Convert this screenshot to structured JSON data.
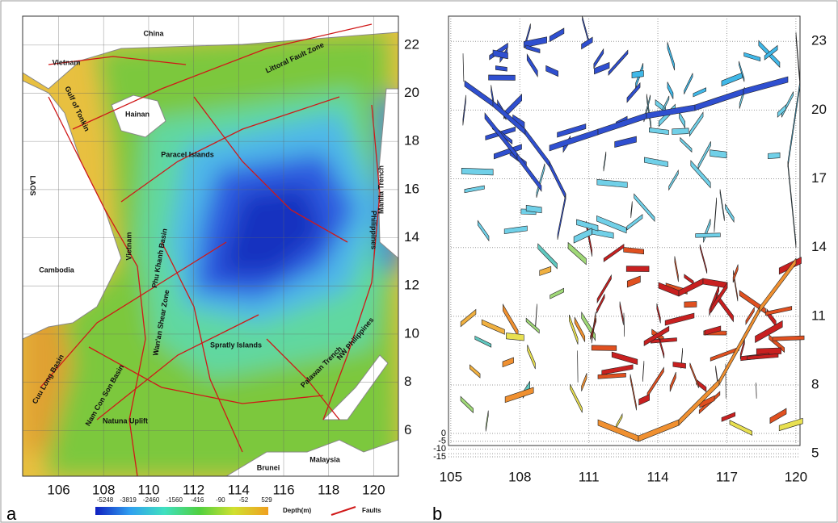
{
  "panel_a": {
    "label": "a",
    "xlim": [
      104.4,
      121.1
    ],
    "ylim": [
      4.1,
      23.2
    ],
    "xticks": [
      106,
      108,
      110,
      112,
      114,
      116,
      118,
      120
    ],
    "yticks": [
      6,
      8,
      10,
      12,
      14,
      16,
      18,
      20,
      22
    ],
    "places": [
      "China",
      "Vietnam",
      "Hainan",
      "Littoral Fault Zone",
      "Gulf of Tonkin",
      "LAOS",
      "Paracel Islands",
      "Manila Trench",
      "Philippines",
      "Cambodia",
      "Vietnam",
      "Phu Khanh Basin",
      "Wan'an Shear Zone",
      "Spratly Islands",
      "Palawan Trench",
      "NW Philippines",
      "Cuu Long Basin",
      "Nam Con Son Basin",
      "Natuna Uplift",
      "Brunei",
      "Malaysia"
    ],
    "colorbar": {
      "ticks": [
        -5248,
        -3819,
        -2460,
        -1560,
        -416,
        -90,
        -52,
        529
      ],
      "title": "Depth(m)"
    },
    "legend": "Faults"
  },
  "panel_b": {
    "label": "b",
    "xlim": [
      104.9,
      120.18
    ],
    "ylim": [
      4.9,
      24.1
    ],
    "xticks": [
      105,
      108,
      111,
      114,
      117,
      120
    ],
    "yticks": [
      5,
      8,
      11,
      14,
      17,
      20,
      23
    ],
    "zlim": [
      0,
      -15
    ],
    "zticks": [
      0,
      -5,
      -10,
      -15
    ]
  }
}
